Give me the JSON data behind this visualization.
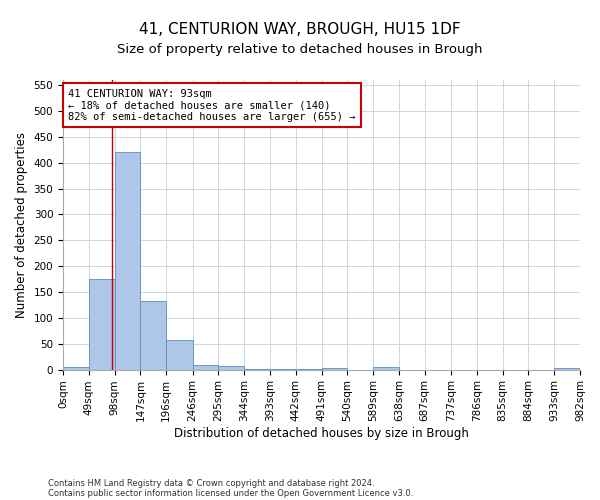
{
  "title": "41, CENTURION WAY, BROUGH, HU15 1DF",
  "subtitle": "Size of property relative to detached houses in Brough",
  "xlabel": "Distribution of detached houses by size in Brough",
  "ylabel": "Number of detached properties",
  "footnote1": "Contains HM Land Registry data © Crown copyright and database right 2024.",
  "footnote2": "Contains public sector information licensed under the Open Government Licence v3.0.",
  "bar_edges": [
    0,
    49,
    98,
    147,
    196,
    246,
    295,
    344,
    393,
    442,
    491,
    540,
    589,
    638,
    687,
    737,
    786,
    835,
    884,
    933,
    982
  ],
  "bar_labels": [
    "0sqm",
    "49sqm",
    "98sqm",
    "147sqm",
    "196sqm",
    "246sqm",
    "295sqm",
    "344sqm",
    "393sqm",
    "442sqm",
    "491sqm",
    "540sqm",
    "589sqm",
    "638sqm",
    "687sqm",
    "737sqm",
    "786sqm",
    "835sqm",
    "884sqm",
    "933sqm",
    "982sqm"
  ],
  "bar_values": [
    5,
    175,
    420,
    132,
    58,
    8,
    7,
    2,
    2,
    2,
    4,
    0,
    5,
    0,
    0,
    0,
    0,
    0,
    0,
    3
  ],
  "bar_color": "#aec6e8",
  "bar_edge_color": "#5a8fc2",
  "property_line_x": 93,
  "property_line_color": "#cc0000",
  "annotation_line1": "41 CENTURION WAY: 93sqm",
  "annotation_line2": "← 18% of detached houses are smaller (140)",
  "annotation_line3": "82% of semi-detached houses are larger (655) →",
  "annotation_box_color": "#cc0000",
  "ylim": [
    0,
    560
  ],
  "yticks": [
    0,
    50,
    100,
    150,
    200,
    250,
    300,
    350,
    400,
    450,
    500,
    550
  ],
  "background_color": "#ffffff",
  "grid_color": "#c8d8e8",
  "title_fontsize": 11,
  "subtitle_fontsize": 9.5,
  "axis_label_fontsize": 8.5,
  "tick_fontsize": 7.5,
  "annotation_fontsize": 7.5,
  "footnote_fontsize": 6.0
}
